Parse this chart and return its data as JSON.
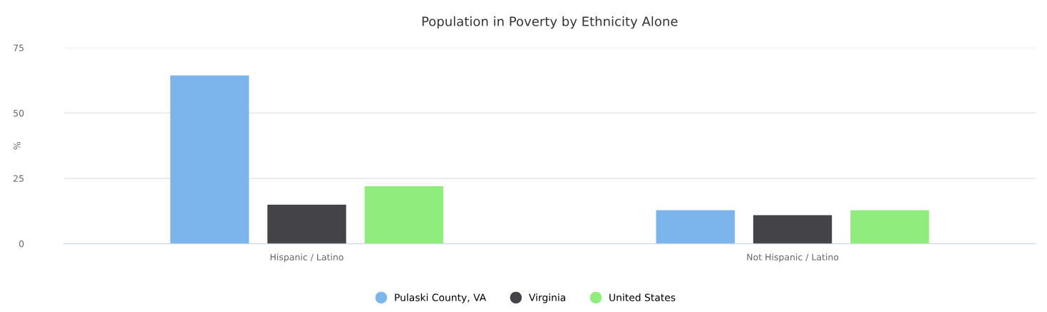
{
  "chart_data": {
    "type": "bar",
    "title": "Population in Poverty by Ethnicity Alone",
    "ylabel": "%",
    "categories": [
      "Hispanic / Latino",
      "Not Hispanic / Latino"
    ],
    "series": [
      {
        "name": "Pulaski County, VA",
        "color": "#7cb5ec",
        "values": [
          64.4,
          12.8
        ]
      },
      {
        "name": "Virginia",
        "color": "#434348",
        "values": [
          14.9,
          10.9
        ]
      },
      {
        "name": "United States",
        "color": "#90ed7d",
        "values": [
          22.0,
          12.8
        ]
      }
    ],
    "ylim": [
      0,
      75
    ],
    "yticks": [
      0,
      25,
      50,
      75
    ],
    "grid": "y",
    "legend": "bottom"
  }
}
